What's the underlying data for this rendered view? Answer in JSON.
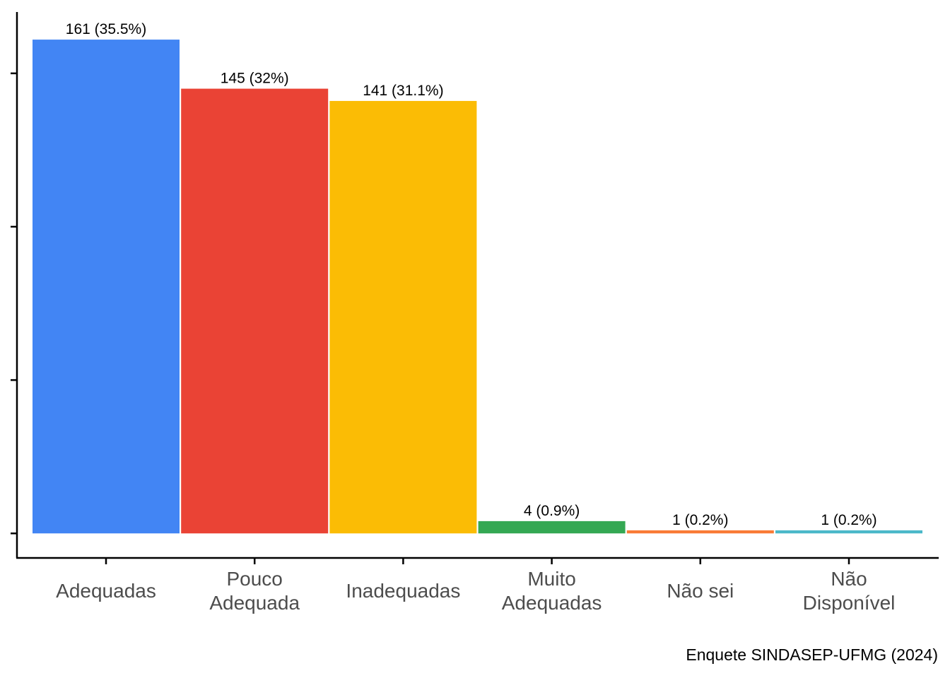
{
  "chart_data": {
    "type": "bar",
    "categories": [
      [
        "Adequadas"
      ],
      [
        "Pouco",
        "Adequada"
      ],
      [
        "Inadequadas"
      ],
      [
        "Muito",
        "Adequadas"
      ],
      [
        "Não sei"
      ],
      [
        "Não",
        "Disponível"
      ]
    ],
    "values": [
      161,
      145,
      141,
      4,
      1,
      1
    ],
    "labels": [
      "161 (35.5%)",
      "145 (32%)",
      "141 (31.1%)",
      "4 (0.9%)",
      "1 (0.2%)",
      "1 (0.2%)"
    ],
    "colors": [
      "#4285F4",
      "#EA4335",
      "#FBBC05",
      "#34A853",
      "#F97B36",
      "#4BB8C9"
    ],
    "title": "",
    "xlabel": "",
    "ylabel": "",
    "caption": "Enquete SINDASEP-UFMG (2024)",
    "ylim": [
      -8,
      170
    ],
    "legend": "none",
    "grid": false
  }
}
